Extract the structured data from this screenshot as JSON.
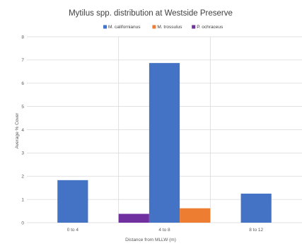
{
  "chart_data": {
    "type": "bar",
    "title": "Mytilus spp.  distribution  at Westside Preserve",
    "xlabel": "Distance from MLLW (m)",
    "ylabel": "Average % Cover",
    "categories": [
      "0 to 4",
      "4 to 8",
      "8 to 12"
    ],
    "ylim": [
      0,
      8
    ],
    "yticks": [
      0,
      1,
      2,
      3,
      4,
      5,
      6,
      7,
      8
    ],
    "grid": true,
    "legend": "top",
    "series": [
      {
        "name": "M. californianus",
        "color": "#4472C4",
        "values": [
          1.83,
          6.87,
          1.25
        ]
      },
      {
        "name": "M. trossulus",
        "color": "#ED7D31",
        "values": [
          0,
          0.62,
          0
        ]
      },
      {
        "name": "P. ochraceus",
        "color": "#7030A0",
        "values": [
          0,
          0.38,
          0
        ]
      }
    ],
    "bar_order": [
      "P. ochraceus",
      "M. californianus",
      "M. trossulus"
    ]
  }
}
